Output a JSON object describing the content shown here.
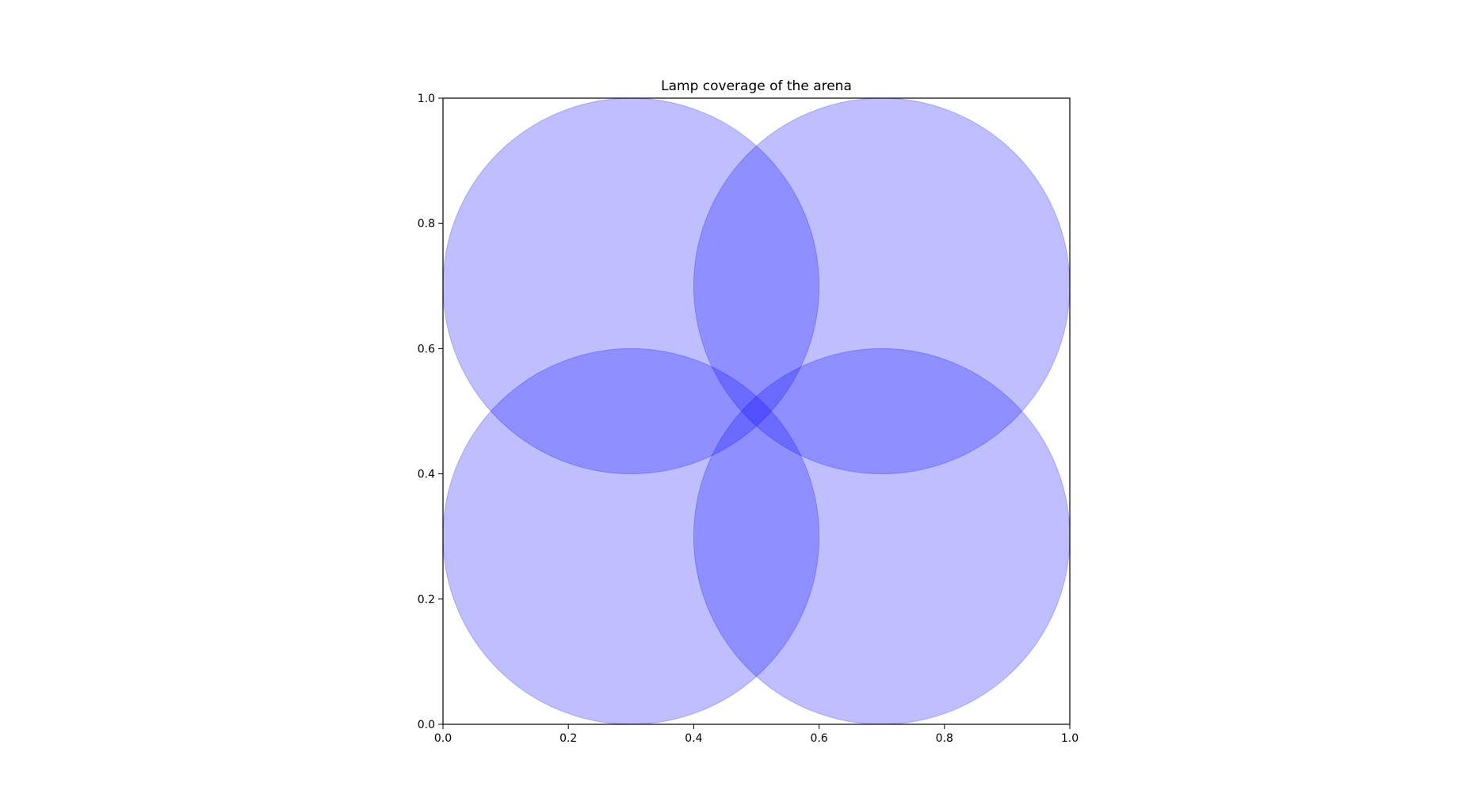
{
  "chart_data": {
    "type": "scatter",
    "title": "Lamp coverage of the arena",
    "xlabel": "",
    "ylabel": "",
    "xlim": [
      0.0,
      1.0
    ],
    "ylim": [
      0.0,
      1.0
    ],
    "grid": false,
    "aspect": "equal",
    "xticks": [
      "0.0",
      "0.2",
      "0.4",
      "0.6",
      "0.8",
      "1.0"
    ],
    "yticks": [
      "0.0",
      "0.2",
      "0.4",
      "0.6",
      "0.8",
      "1.0"
    ],
    "circles": [
      {
        "x": 0.3,
        "y": 0.7,
        "r": 0.3
      },
      {
        "x": 0.7,
        "y": 0.7,
        "r": 0.3
      },
      {
        "x": 0.3,
        "y": 0.3,
        "r": 0.3
      },
      {
        "x": 0.7,
        "y": 0.3,
        "r": 0.3
      }
    ],
    "fill_color": "#0000ff",
    "fill_opacity": 0.25
  }
}
